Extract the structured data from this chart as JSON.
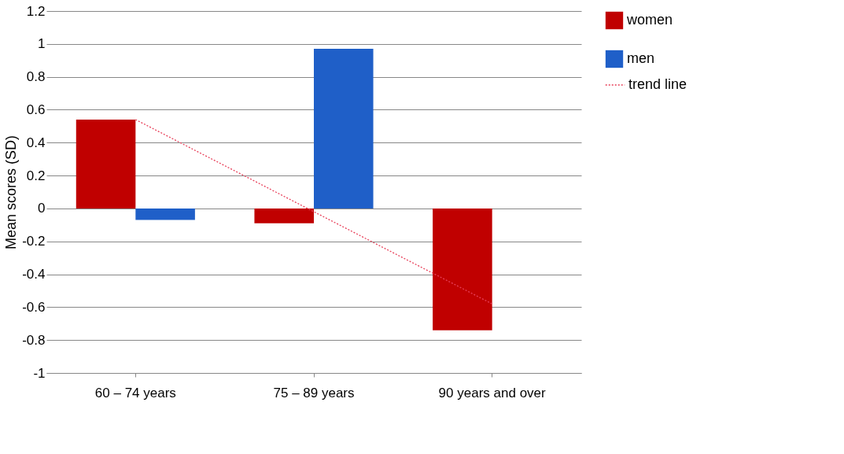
{
  "chart_data": {
    "type": "bar",
    "ylabel": "Mean scores (SD)",
    "categories": [
      "60 – 74 years",
      "75 – 89 years",
      "90 years and over"
    ],
    "series": [
      {
        "name": "women",
        "color": "#c00000",
        "values": [
          0.54,
          -0.09,
          -0.74
        ]
      },
      {
        "name": "men",
        "color": "#1f5fc8",
        "values": [
          -0.07,
          0.97,
          null
        ]
      },
      {
        "name": "trend line",
        "type": "line",
        "color": "#e8405a",
        "line_style": "dotted",
        "x": [
          "60 – 74 years",
          "90 years and over"
        ],
        "values": [
          0.54,
          -0.58
        ]
      }
    ],
    "ylim": [
      -1,
      1.2
    ],
    "yticks": [
      -1,
      -0.8,
      -0.6,
      -0.4,
      -0.2,
      0,
      0.2,
      0.4,
      0.6,
      0.8,
      1,
      1.2
    ],
    "grid": "y",
    "legend": "right"
  }
}
